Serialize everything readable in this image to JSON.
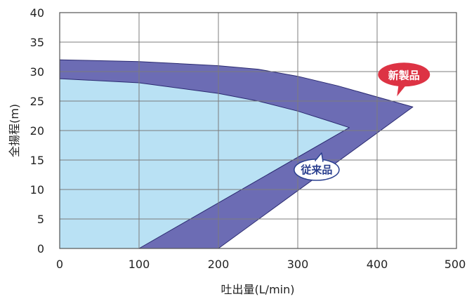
{
  "chart_data": {
    "type": "area",
    "xlabel": "吐出量(L/min)",
    "ylabel": "全揚程(m)",
    "xlim": [
      0,
      500
    ],
    "ylim": [
      0,
      40
    ],
    "x_ticks": [
      0,
      100,
      200,
      300,
      400,
      500
    ],
    "y_ticks": [
      0,
      5,
      10,
      15,
      20,
      25,
      30,
      35,
      40
    ],
    "grid": true,
    "series": [
      {
        "name": "新製品",
        "color": "#6c6cb4",
        "outline": [
          {
            "x": 0,
            "y": 32
          },
          {
            "x": 100,
            "y": 31.7
          },
          {
            "x": 200,
            "y": 31
          },
          {
            "x": 250,
            "y": 30.4
          },
          {
            "x": 300,
            "y": 29.2
          },
          {
            "x": 350,
            "y": 27.6
          },
          {
            "x": 400,
            "y": 25.7
          },
          {
            "x": 445,
            "y": 24
          },
          {
            "x": 200,
            "y": 0
          },
          {
            "x": 0,
            "y": 0
          }
        ]
      },
      {
        "name": "従来品",
        "color": "#b9e1f4",
        "outline": [
          {
            "x": 0,
            "y": 28.8
          },
          {
            "x": 100,
            "y": 28.1
          },
          {
            "x": 200,
            "y": 26.3
          },
          {
            "x": 250,
            "y": 25
          },
          {
            "x": 300,
            "y": 23.3
          },
          {
            "x": 340,
            "y": 21.6
          },
          {
            "x": 365,
            "y": 20.5
          },
          {
            "x": 100,
            "y": 0
          },
          {
            "x": 0,
            "y": 0
          }
        ]
      }
    ],
    "annotations": [
      {
        "text": "新製品",
        "series": "新製品",
        "style": "red-bubble",
        "anchor": {
          "x": 425,
          "y": 25.8
        }
      },
      {
        "text": "従来品",
        "series": "従来品",
        "style": "white-bubble",
        "anchor": {
          "x": 330,
          "y": 16.2
        }
      }
    ]
  },
  "colors": {
    "plot_background": "#ffffff",
    "grid": "#7c7c7c",
    "axis": "#555555",
    "outline": "#2a2a70",
    "callout_new_fill": "#dd3344",
    "callout_new_text": "#ffffff",
    "callout_old_fill": "#ffffff",
    "callout_old_stroke": "#2a3f8f",
    "callout_old_text": "#2a3f8f"
  }
}
